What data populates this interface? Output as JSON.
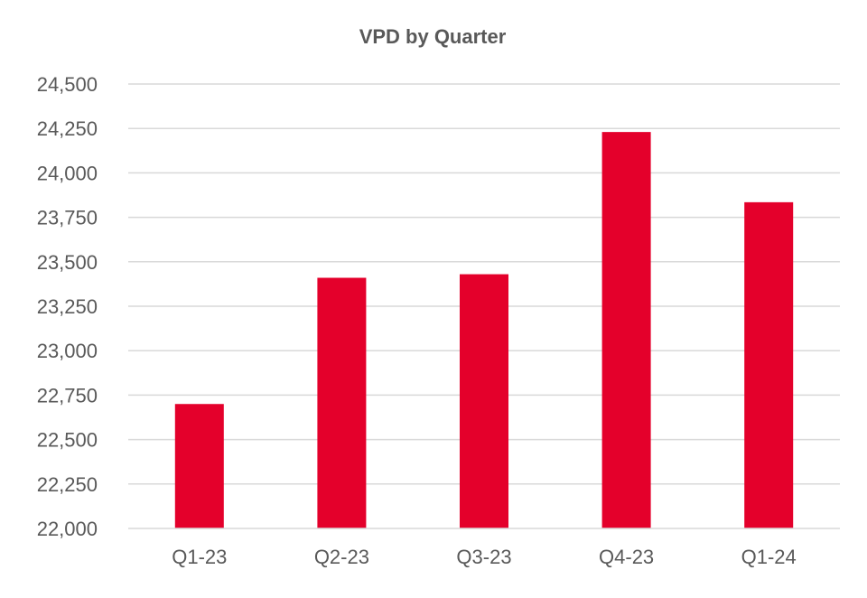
{
  "chart_data": {
    "type": "bar",
    "title": "VPD by Quarter",
    "xlabel": "",
    "ylabel": "",
    "categories": [
      "Q1-23",
      "Q2-23",
      "Q3-23",
      "Q4-23",
      "Q1-24"
    ],
    "series": [
      {
        "name": "VPD",
        "values": [
          22700,
          23410,
          23430,
          24230,
          23835
        ],
        "color": "#e4002b"
      }
    ],
    "ylim": [
      22000,
      24500
    ],
    "yticks": [
      22000,
      22250,
      22500,
      22750,
      23000,
      23250,
      23500,
      23750,
      24000,
      24250,
      24500
    ],
    "ytick_labels": [
      "22,000",
      "22,250",
      "22,500",
      "22,750",
      "23,000",
      "23,250",
      "23,500",
      "23,750",
      "24,000",
      "24,250",
      "24,500"
    ],
    "grid": true,
    "legend": "none"
  }
}
